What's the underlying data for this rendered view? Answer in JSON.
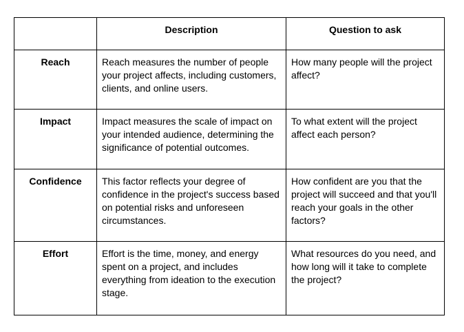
{
  "table": {
    "headers": [
      "",
      "Description",
      "Question to ask"
    ],
    "rows": [
      {
        "factor": "Reach",
        "description": "Reach measures the number of people your project affects, including customers, clients, and online users.",
        "question": "How many people will the project affect?"
      },
      {
        "factor": "Impact",
        "description": "Impact measures the scale of impact on your intended audience, determining the significance of potential outcomes.",
        "question": "To what extent will the project affect each person?"
      },
      {
        "factor": "Confidence",
        "description": "This factor reflects your degree of confidence in the project's success based on potential risks and unforeseen circumstances.",
        "question": "How confident are you that the project will succeed and that you'll reach your goals in the other factors?"
      },
      {
        "factor": "Effort",
        "description": "Effort is the time, money, and energy spent on a project, and includes everything from ideation to the execution stage.",
        "question": "What resources do you need, and how long will it take to complete the project?"
      }
    ]
  }
}
